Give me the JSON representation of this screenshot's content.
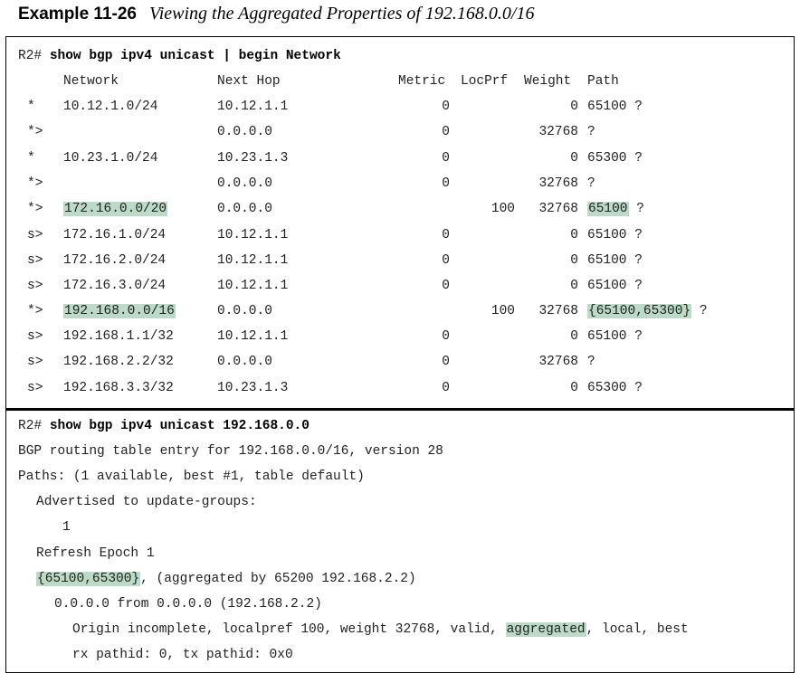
{
  "caption": {
    "label": "Example 11-26",
    "title": "Viewing the Aggregated Properties of 192.168.0.0/16"
  },
  "cmd1": {
    "prompt": "R2# ",
    "command": "show bgp ipv4 unicast | begin Network"
  },
  "table": {
    "headers": [
      "Network",
      "Next Hop",
      "Metric",
      "LocPrf",
      "Weight",
      "Path"
    ],
    "rows": [
      {
        "status": "*",
        "network": "10.12.1.0/24",
        "nexthop": "10.12.1.1",
        "metric": "0",
        "locprf": "",
        "weight": "0",
        "path": "65100",
        "origin": "?"
      },
      {
        "status": "*>",
        "network": "",
        "nexthop": "0.0.0.0",
        "metric": "0",
        "locprf": "",
        "weight": "32768",
        "path": "",
        "origin": "?"
      },
      {
        "status": "*",
        "network": "10.23.1.0/24",
        "nexthop": "10.23.1.3",
        "metric": "0",
        "locprf": "",
        "weight": "0",
        "path": "65300",
        "origin": "?"
      },
      {
        "status": "*>",
        "network": "",
        "nexthop": "0.0.0.0",
        "metric": "0",
        "locprf": "",
        "weight": "32768",
        "path": "",
        "origin": "?"
      },
      {
        "status": "*>",
        "network": "172.16.0.0/20",
        "nexthop": "0.0.0.0",
        "metric": "",
        "locprf": "100",
        "weight": "32768",
        "path": "65100",
        "origin": "?"
      },
      {
        "status": "s>",
        "network": "172.16.1.0/24",
        "nexthop": "10.12.1.1",
        "metric": "0",
        "locprf": "",
        "weight": "0",
        "path": "65100",
        "origin": "?"
      },
      {
        "status": "s>",
        "network": "172.16.2.0/24",
        "nexthop": "10.12.1.1",
        "metric": "0",
        "locprf": "",
        "weight": "0",
        "path": "65100",
        "origin": "?"
      },
      {
        "status": "s>",
        "network": "172.16.3.0/24",
        "nexthop": "10.12.1.1",
        "metric": "0",
        "locprf": "",
        "weight": "0",
        "path": "65100",
        "origin": "?"
      },
      {
        "status": "*>",
        "network": "192.168.0.0/16",
        "nexthop": "0.0.0.0",
        "metric": "",
        "locprf": "100",
        "weight": "32768",
        "path": "{65100,65300}",
        "origin": "?"
      },
      {
        "status": "s>",
        "network": "192.168.1.1/32",
        "nexthop": "10.12.1.1",
        "metric": "0",
        "locprf": "",
        "weight": "0",
        "path": "65100",
        "origin": "?"
      },
      {
        "status": "s>",
        "network": "192.168.2.2/32",
        "nexthop": "0.0.0.0",
        "metric": "0",
        "locprf": "",
        "weight": "32768",
        "path": "",
        "origin": "?"
      },
      {
        "status": "s>",
        "network": "192.168.3.3/32",
        "nexthop": "10.23.1.3",
        "metric": "0",
        "locprf": "",
        "weight": "0",
        "path": "65300",
        "origin": "?"
      }
    ],
    "highlighted_rows": [
      4,
      8
    ]
  },
  "cmd2": {
    "prompt": "R2# ",
    "command": "show bgp ipv4 unicast 192.168.0.0"
  },
  "detail": {
    "l1": "BGP routing table entry for 192.168.0.0/16, version 28",
    "l2": "Paths: (1 available, best #1, table default)",
    "l3": "Advertised to update-groups:",
    "l4": "1",
    "l5": "Refresh Epoch 1",
    "l6_hl": "{65100,65300}",
    "l6_rest": ", (aggregated by 65200 192.168.2.2)",
    "l7": "0.0.0.0 from 0.0.0.0 (192.168.2.2)",
    "l8_pre": "Origin incomplete, localpref 100, weight 32768, valid, ",
    "l8_hl": "aggregated",
    "l8_post": ", local, best",
    "l9": "rx pathid: 0, tx pathid: 0x0"
  },
  "colors": {
    "highlight": "#bcdbc6"
  }
}
